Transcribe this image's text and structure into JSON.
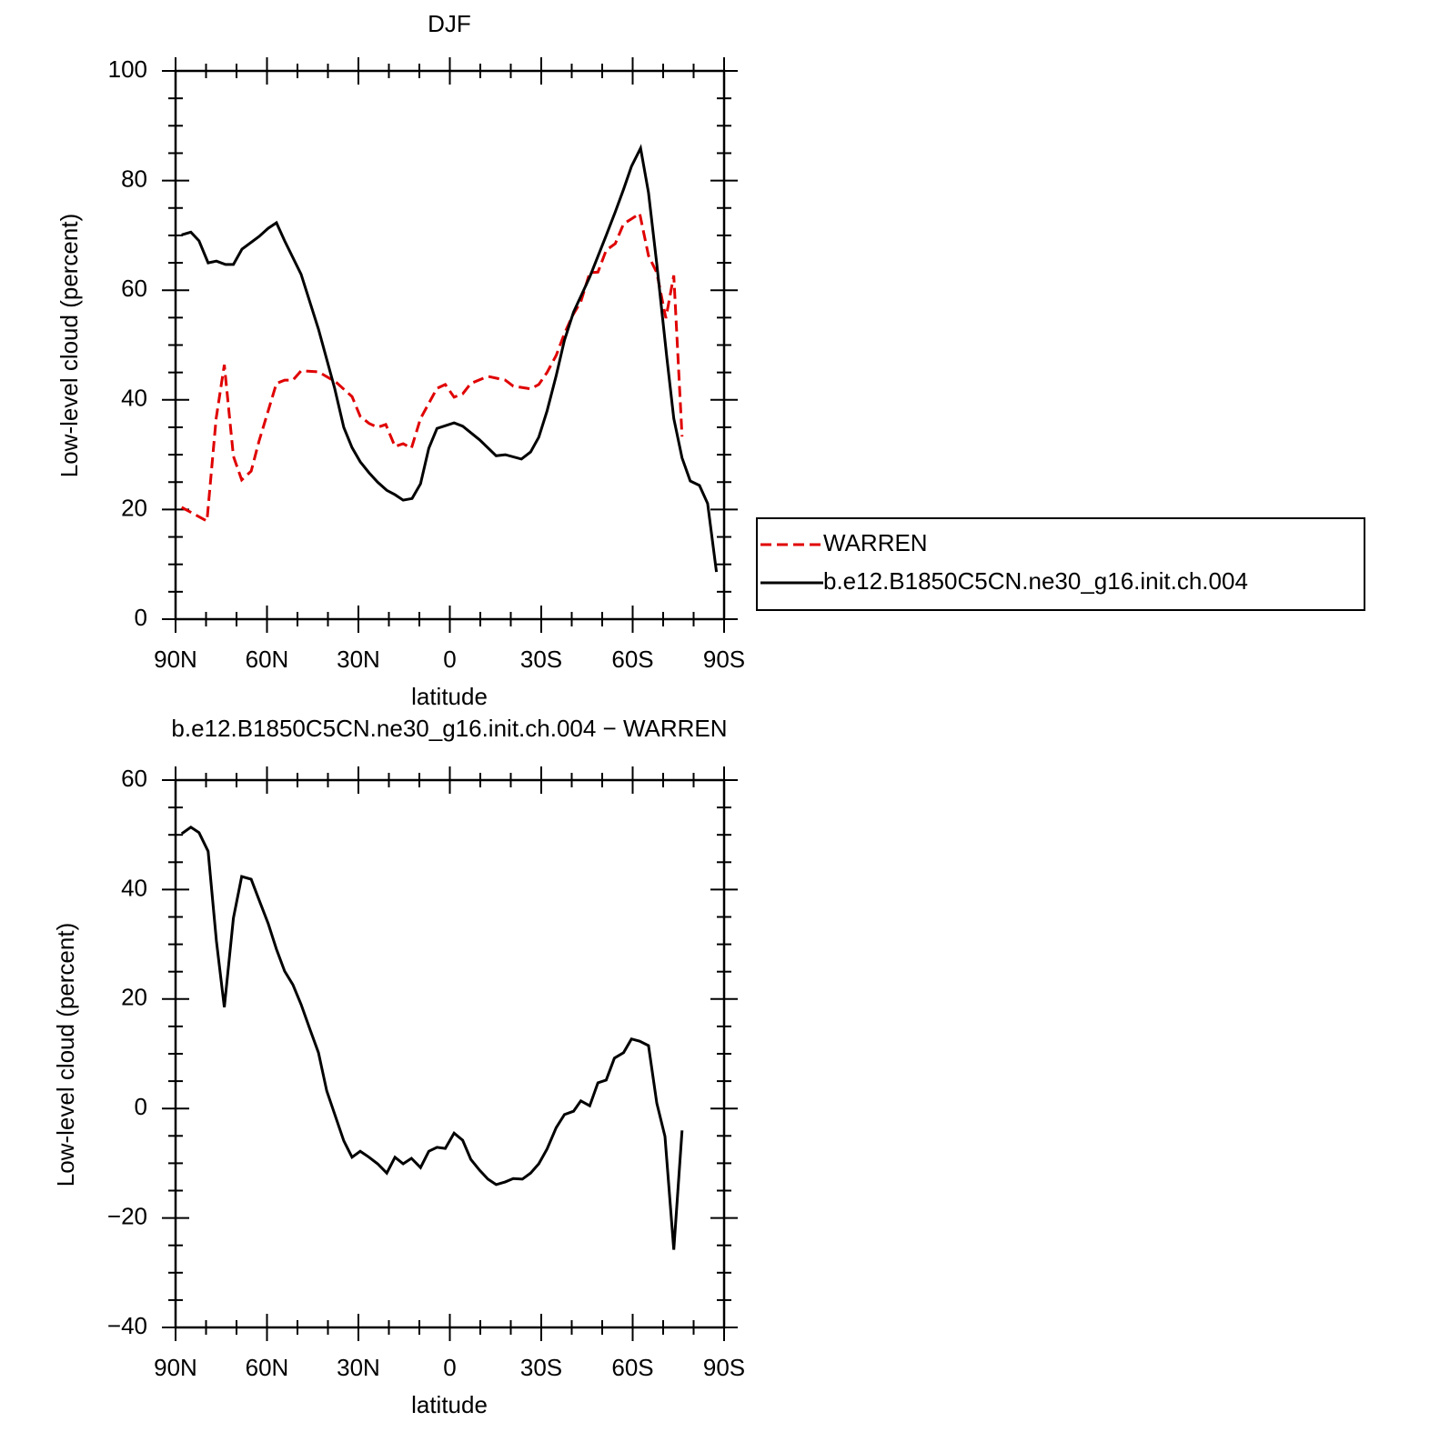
{
  "chart_data": [
    {
      "type": "line",
      "title": "DJF",
      "xlabel": "latitude",
      "ylabel": "Low-level cloud (percent)",
      "xlim": [
        90,
        -90
      ],
      "xticks": [
        {
          "value": 90,
          "label": "90N"
        },
        {
          "value": 60,
          "label": "60N"
        },
        {
          "value": 30,
          "label": "30N"
        },
        0,
        {
          "value": -30,
          "label": "30S"
        },
        {
          "value": -60,
          "label": "60S"
        },
        {
          "value": -90,
          "label": "90S"
        }
      ],
      "ylim": [
        0,
        100
      ],
      "yticks": [
        0,
        20,
        40,
        60,
        80,
        100
      ],
      "legend": "outside right",
      "series": [
        {
          "name": "WARREN",
          "color": "#e00000",
          "line_style": "dashed",
          "x": [
            88,
            79.7,
            76.7,
            74,
            71,
            68.3,
            65.2,
            62.6,
            59.6,
            56.9,
            54.2,
            51.5,
            48.8,
            43.1,
            37.5,
            32.1,
            29.4,
            26.5,
            23.7,
            21,
            18,
            15.3,
            12.6,
            9.6,
            4.2,
            1.5,
            -1.4,
            -4.2,
            -6.9,
            -12.5,
            -18.2,
            -20.8,
            -26.5,
            -29.2,
            -31.9,
            -34.9,
            -37.6,
            -40.3,
            -43,
            -45.9,
            -48.6,
            -51.3,
            -54.3,
            -57,
            -59.6,
            -62.3,
            -65.2,
            -67.9,
            -70.9,
            -73.5,
            -76.2
          ],
          "values": [
            20.4,
            17.9,
            36.6,
            46.4,
            29.7,
            25.4,
            27,
            32.5,
            38,
            43,
            43.6,
            43.6,
            45.3,
            45.1,
            43.3,
            40.6,
            37,
            35.7,
            35,
            35.5,
            31.5,
            32,
            31.2,
            36.6,
            42.1,
            42.8,
            40.5,
            41.1,
            43,
            44.3,
            43.6,
            42.5,
            42,
            42.8,
            45,
            48.1,
            52.1,
            55.4,
            57.9,
            63.2,
            63.3,
            67.3,
            68.5,
            72.1,
            73,
            74,
            66.3,
            63.2,
            54.9,
            62.7,
            33.3
          ]
        },
        {
          "name": "b.e12.B1850C5CN.ne30_g16.init.ch.004",
          "color": "#000000",
          "line_style": "solid",
          "x": [
            88,
            85,
            82.3,
            79.3,
            76.6,
            73.6,
            71,
            68.2,
            62.6,
            59.6,
            56.9,
            54.2,
            48.8,
            43.1,
            37.8,
            34.8,
            32.1,
            29.4,
            26.5,
            23.7,
            20.7,
            18,
            15.3,
            12.4,
            9.6,
            6.9,
            4.2,
            -1.4,
            -4.2,
            -9.8,
            -15.2,
            -18.2,
            -23.5,
            -26.5,
            -29.2,
            -31.9,
            -34.9,
            -37.6,
            -40.6,
            -45.9,
            -51.3,
            -54.3,
            -57,
            -59.6,
            -62.6,
            -65.2,
            -67.9,
            -71.2,
            -73.5,
            -76.2,
            -78.9,
            -81.9,
            -84.6,
            -87.5
          ],
          "values": [
            70.1,
            70.6,
            69,
            65,
            65.3,
            64.7,
            64.7,
            67.5,
            69.8,
            71.3,
            72.3,
            69,
            62.9,
            52.9,
            42.1,
            35,
            31.3,
            28.7,
            26.7,
            25,
            23.5,
            22.7,
            21.7,
            22,
            24.7,
            31.2,
            34.8,
            35.8,
            35.2,
            32.7,
            29.8,
            30,
            29.2,
            30.5,
            33.2,
            38,
            44.4,
            50.9,
            56,
            62.4,
            70,
            74.3,
            78.4,
            82.6,
            85.9,
            77.8,
            64.8,
            47.8,
            36.6,
            29.4,
            25.2,
            24.4,
            21.1,
            8.6
          ]
        }
      ]
    },
    {
      "type": "line",
      "title": "b.e12.B1850C5CN.ne30_g16.init.ch.004 − WARREN",
      "xlabel": "latitude",
      "ylabel": "Low-level cloud (percent)",
      "xlim": [
        90,
        -90
      ],
      "xticks": [
        {
          "value": 90,
          "label": "90N"
        },
        {
          "value": 60,
          "label": "60N"
        },
        {
          "value": 30,
          "label": "30N"
        },
        0,
        {
          "value": -30,
          "label": "30S"
        },
        {
          "value": -60,
          "label": "60S"
        },
        {
          "value": -90,
          "label": "90S"
        }
      ],
      "ylim": [
        -40,
        60
      ],
      "yticks": [
        {
          "value": -40,
          "label": "−40"
        },
        {
          "value": -20,
          "label": "−20"
        },
        0,
        20,
        40,
        60
      ],
      "series": [
        {
          "color": "#000000",
          "line_style": "solid",
          "x": [
            88,
            85,
            82.3,
            79.3,
            76.6,
            74,
            71,
            68.3,
            65.2,
            62.6,
            59.6,
            56.9,
            54.2,
            51.5,
            48.8,
            45.8,
            43.1,
            40.4,
            34.8,
            32.1,
            29.4,
            26.5,
            23.7,
            20.7,
            18,
            15.3,
            12.6,
            9.6,
            6.9,
            4.2,
            1.5,
            -1.4,
            -4.2,
            -6.9,
            -9.8,
            -12.5,
            -15.2,
            -18.2,
            -20.8,
            -23.8,
            -26.5,
            -29.2,
            -31.9,
            -34.9,
            -37.6,
            -40.6,
            -43,
            -45.9,
            -48.6,
            -51.3,
            -54,
            -57,
            -59.6,
            -62.3,
            -65.2,
            -67.9,
            -70.6,
            -73.5,
            -76.2
          ],
          "values": [
            50.2,
            51.4,
            50.4,
            47,
            30.6,
            18.5,
            34.8,
            42.4,
            41.9,
            38.1,
            33.8,
            29.1,
            25.1,
            22.6,
            19,
            14.3,
            10.2,
            3.2,
            -5.9,
            -8.9,
            -7.8,
            -8.9,
            -10.1,
            -11.8,
            -8.9,
            -10.1,
            -9.1,
            -10.8,
            -7.8,
            -7.1,
            -7.3,
            -4.5,
            -5.8,
            -9.3,
            -11.3,
            -12.9,
            -13.9,
            -13.4,
            -12.8,
            -12.9,
            -11.8,
            -10.1,
            -7.4,
            -3.5,
            -1.1,
            -0.5,
            1.4,
            0.5,
            4.7,
            5.2,
            9.2,
            10.2,
            12.7,
            12.3,
            11.5,
            1,
            -5.1,
            -25.8,
            -4
          ]
        }
      ]
    }
  ]
}
